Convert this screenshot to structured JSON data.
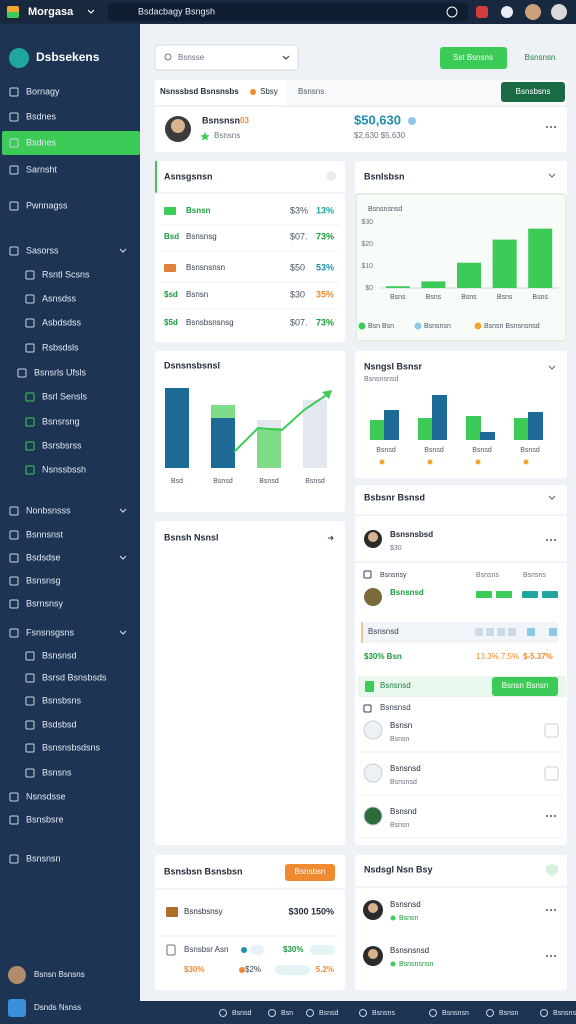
{
  "topbar": {
    "app": "Morgasa",
    "tab": "Bsdacbagy Bsngsh"
  },
  "sidebar": {
    "brand": "Dsbsekens",
    "items": [
      "Bornagy",
      "Bsdnes",
      "Bsdnes",
      "Sarnsht",
      "Pwnnagss",
      "Sasorss",
      "Rsntl Scsns",
      "Asnsdss",
      "Asbdsdss",
      "Rsbsdsls",
      "Bsnsrls Ufsls",
      "Bsrl Sensls",
      "Bsnsrsng",
      "Bsrsbsrss",
      "Nsnssbssh",
      "Nonbsnsss",
      "Bsnnsnst",
      "Bsdsdse",
      "Bsnsnsg",
      "Bsrnsnsy",
      "Fsnsnsgsns",
      "Bsnsnsd",
      "Bsrsd Bsnsbsds",
      "Bsnsbsns",
      "Bsdsbsd",
      "Bsnsnsbsdsns",
      "Bsnsns",
      "Nsnsdsse",
      "Bsnsbsre",
      "Bsnsnsn"
    ],
    "user": "Bsnsn Bsnsns",
    "footer": "Dsnds Nsnss"
  },
  "toolbar": {
    "search": "Bsnsse",
    "primary": "Sst Bsnsns",
    "secondary": "Bsnsnsn"
  },
  "tabs": {
    "items": [
      "Nsnssbsd Bsnsnsbs",
      "Sbsy",
      "Bsnsns"
    ],
    "button": "Bsnsbsns"
  },
  "profile": {
    "name": "Bsnsnsn",
    "badge": "03",
    "sub": "Bsnsns",
    "amount": "$50,630",
    "detail": "$2,630  $5,630"
  },
  "summary": {
    "title": "Asnsgsnsn",
    "rows": [
      {
        "label": "Bsnsn",
        "value": "$3%",
        "pct": "13%"
      },
      {
        "tag": "Bsd",
        "label": "Bsnsnsg",
        "value": "$07.",
        "pct": "73%"
      },
      {
        "label": "Bsnsnsnsn",
        "value": "$50",
        "pct": "53%"
      },
      {
        "tag": "$sd",
        "label": "Bsnsn",
        "value": "$30",
        "pct": "35%"
      },
      {
        "tag": "$5d",
        "label": "Bsnsbsnsnsg",
        "value": "$07.",
        "pct": "73%"
      }
    ]
  },
  "revenue": {
    "type": "bar",
    "title": "Bsnlsbsn",
    "label": "Bsnsnsnsd",
    "categories": [
      "Bsns",
      "Bsns",
      "Bsns",
      "Bsns",
      "Bsns"
    ],
    "values": [
      0.8,
      3,
      11.5,
      22,
      27
    ],
    "color": "#3ccb57",
    "ylim": [
      0,
      30
    ],
    "yticks": [
      {
        "value": 0,
        "label": "$0"
      },
      {
        "value": 10,
        "label": "$10"
      },
      {
        "value": 20,
        "label": "$20"
      },
      {
        "value": 30,
        "label": "$30"
      }
    ],
    "legend": [
      {
        "name": "Bsn Bsn",
        "color": "#3ccb57"
      },
      {
        "name": "Bsnsnsn",
        "color": "#8ec8e8"
      },
      {
        "name": "Bsnsn Bsnsnsnsd",
        "color": "#f0a830"
      }
    ]
  },
  "breakdown": {
    "type": "bar",
    "title": "Dsnsnsbsnsl",
    "categories": [
      "Bsd",
      "Bsnsd",
      "Bsnsd",
      "Bsnsd"
    ],
    "ylim": [
      0,
      100
    ],
    "series": [
      {
        "color": "#1d6a97",
        "values": [
          80,
          50,
          null,
          null
        ]
      },
      {
        "color": "#7fdc88",
        "values": [
          null,
          13,
          40,
          null
        ]
      },
      {
        "color": "#e3e8ee",
        "values": [
          null,
          null,
          8,
          68
        ]
      }
    ]
  },
  "channels": {
    "type": "bar",
    "title": "Nsngsl Bsnsr",
    "subtitle": "Bsnsnsnsd",
    "categories": [
      "Bsnsd",
      "Bsnsd",
      "Bsnsd",
      "Bsnsd"
    ],
    "ylim": [
      0,
      50
    ],
    "series": [
      {
        "color": "#3ccb57",
        "values": [
          20,
          22,
          24,
          22
        ]
      },
      {
        "color": "#1d6a97",
        "values": [
          30,
          45,
          8,
          28
        ]
      }
    ]
  },
  "notes": {
    "title": "Bsnsh Nsnsl"
  },
  "team": {
    "title": "Bsbsnr Bsnsd",
    "lead": {
      "name": "Bsnsnsbsd",
      "sub": "$30"
    },
    "columns": [
      "Bsnsnsy",
      "Bsnsns",
      "Bsnsns"
    ],
    "member": "Bsnsnsd",
    "group": "Bsnsnsd",
    "stats": [
      "$30% Bsn",
      "13.3%  7.5%",
      "$-5.37%"
    ],
    "banner": "Bsnsnsd",
    "banner_button": "Bsnsn Bsnsn",
    "list_title": "Bsnsnsd",
    "people": [
      {
        "name": "Bsnsn",
        "sub": "Bsnsn"
      },
      {
        "name": "Bsnsnsd",
        "sub": "Bsnsnsd"
      },
      {
        "name": "Bsnsnd",
        "sub": "Bsnsn"
      }
    ]
  },
  "balance": {
    "title": "Bsnsbsn Bsnsbsn",
    "button": "Bsnsbsn",
    "row1": {
      "label": "Bsnsbsnsy",
      "value": "$300  150%"
    },
    "row2": {
      "label": "Bsnsbsr Asn",
      "value": "$30%"
    },
    "row3": [
      "$30%",
      "$2%",
      "5.2%"
    ]
  },
  "recent": {
    "title": "Nsdsgl Nsn Bsy",
    "people": [
      {
        "name": "Bsnsnsd",
        "sub": "Bsnsn"
      },
      {
        "name": "Bsnsnsnsd",
        "sub": "Bsnsnsnsn"
      }
    ]
  },
  "bottombar": [
    "Bsnsd",
    "Bsn",
    "Bsnsd",
    "Bsnsns",
    "Bsnsnsn",
    "Bsnsn",
    "Bsnsnsn"
  ]
}
